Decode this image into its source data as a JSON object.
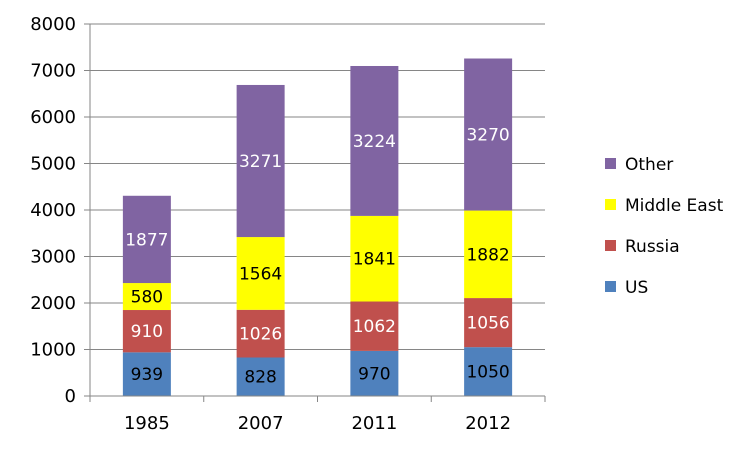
{
  "chart_data": {
    "type": "bar",
    "stacked": true,
    "categories": [
      "1985",
      "2007",
      "2011",
      "2012"
    ],
    "series": [
      {
        "name": "US",
        "values": [
          939,
          828,
          970,
          1050
        ],
        "color": "#4f81bd",
        "label_color": "#000000"
      },
      {
        "name": "Russia",
        "values": [
          910,
          1026,
          1062,
          1056
        ],
        "color": "#c0504d",
        "label_color": "#ffffff"
      },
      {
        "name": "Middle East",
        "values": [
          580,
          1564,
          1841,
          1882
        ],
        "color": "#ffff00",
        "label_color": "#000000"
      },
      {
        "name": "Other",
        "values": [
          1877,
          3271,
          3224,
          3270
        ],
        "color": "#8064a2",
        "label_color": "#ffffff"
      }
    ],
    "ylim": [
      0,
      8000
    ],
    "yticks": [
      "0",
      "1000",
      "2000",
      "3000",
      "4000",
      "5000",
      "6000",
      "7000",
      "8000"
    ],
    "grid": true,
    "legend_position": "right",
    "legend_order": [
      "Other",
      "Middle East",
      "Russia",
      "US"
    ]
  }
}
